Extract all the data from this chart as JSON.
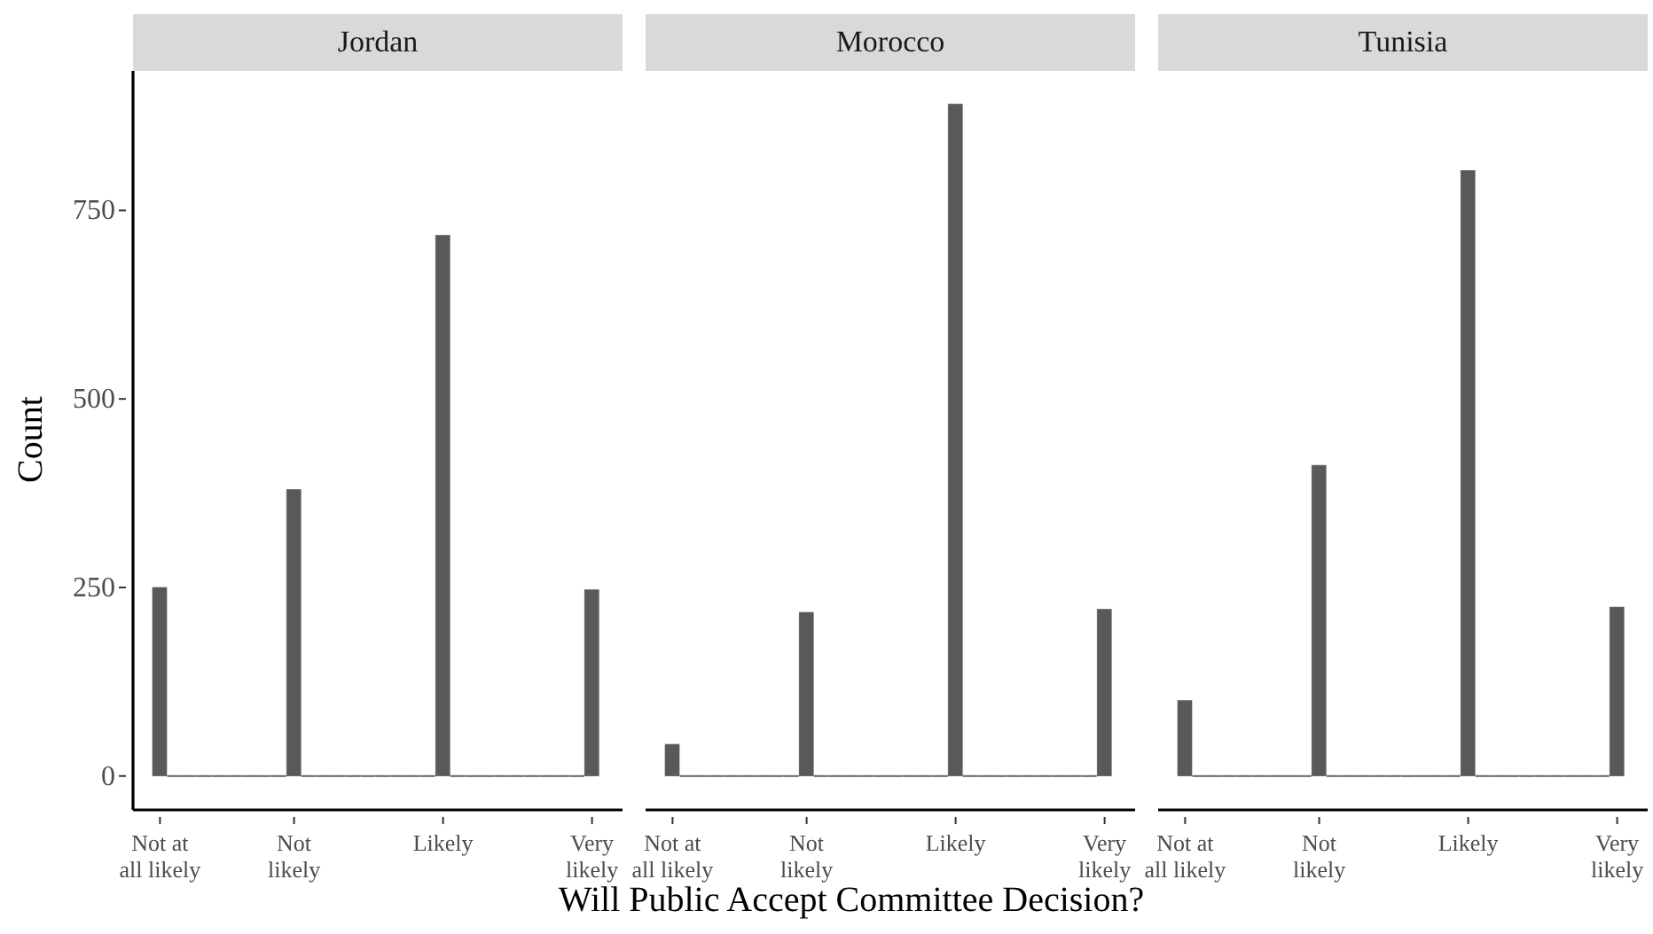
{
  "chart_data": [
    {
      "type": "bar",
      "title": "Jordan",
      "ylabel": "Count",
      "color": "#595959",
      "categories": [
        "Not at\nall likely",
        null,
        null,
        null,
        null,
        null,
        null,
        null,
        null,
        "Not\nlikely",
        null,
        null,
        null,
        null,
        null,
        null,
        null,
        null,
        null,
        "Likely",
        null,
        null,
        null,
        null,
        null,
        null,
        null,
        null,
        null,
        "Very\nlikely"
      ],
      "values": [
        250,
        0,
        0,
        0,
        0,
        0,
        0,
        0,
        0,
        380,
        0,
        0,
        0,
        0,
        0,
        0,
        0,
        0,
        0,
        717,
        0,
        0,
        0,
        0,
        0,
        0,
        0,
        0,
        0,
        247
      ],
      "ylim": [
        -45,
        935
      ],
      "yticks": [
        0,
        250,
        500,
        750
      ]
    },
    {
      "type": "bar",
      "title": "Morocco",
      "xlabel": "Will Public Accept Committee Decision?",
      "color": "#595959",
      "categories": [
        "Not at\nall likely",
        null,
        null,
        null,
        null,
        null,
        null,
        null,
        null,
        "Not\nlikely",
        null,
        null,
        null,
        null,
        null,
        null,
        null,
        null,
        null,
        "Likely",
        null,
        null,
        null,
        null,
        null,
        null,
        null,
        null,
        null,
        "Very\nlikely"
      ],
      "values": [
        42,
        0,
        0,
        0,
        0,
        0,
        0,
        0,
        0,
        217,
        0,
        0,
        0,
        0,
        0,
        0,
        0,
        0,
        0,
        891,
        0,
        0,
        0,
        0,
        0,
        0,
        0,
        0,
        0,
        221
      ],
      "yticks": [
        0,
        250,
        500,
        750
      ],
      "tick_labels": "x"
    },
    {
      "type": "bar",
      "title": "Tunisia",
      "color": "#595959",
      "categories": [
        "Not at\nall likely",
        null,
        null,
        null,
        null,
        null,
        null,
        null,
        null,
        "Not\nlikely",
        null,
        null,
        null,
        null,
        null,
        null,
        null,
        null,
        null,
        "Likely",
        null,
        null,
        null,
        null,
        null,
        null,
        null,
        null,
        null,
        "Very\nlikely"
      ],
      "values": [
        100,
        0,
        0,
        0,
        0,
        0,
        0,
        0,
        0,
        412,
        0,
        0,
        0,
        0,
        0,
        0,
        0,
        0,
        0,
        803,
        0,
        0,
        0,
        0,
        0,
        0,
        0,
        0,
        0,
        224
      ],
      "yticks": [
        0,
        250,
        500,
        750
      ],
      "tick_labels": "x"
    }
  ]
}
